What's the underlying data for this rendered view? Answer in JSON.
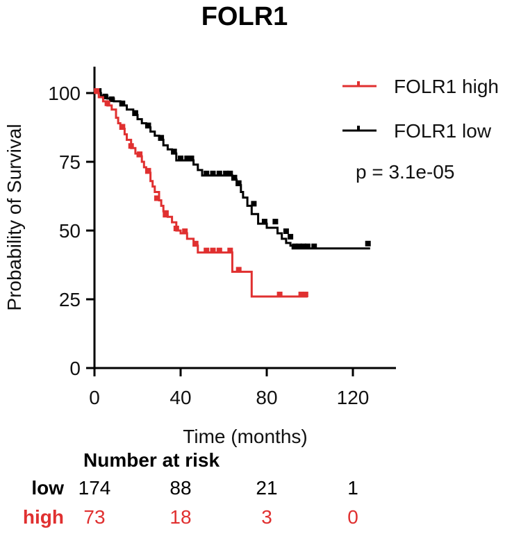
{
  "chart_data": {
    "type": "line",
    "subtype": "kaplan-meier",
    "title": "FOLR1",
    "xlabel": "Time (months)",
    "ylabel": "Probability of Survival",
    "xlim": [
      0,
      140
    ],
    "ylim": [
      0,
      110
    ],
    "xticks": [
      0,
      40,
      80,
      120
    ],
    "yticks": [
      0,
      25,
      50,
      75,
      100
    ],
    "xtick_labels": [
      "0",
      "40",
      "80",
      "120"
    ],
    "ytick_labels": [
      "0",
      "25",
      "50",
      "75",
      "100"
    ],
    "grid": false,
    "legend_position": "top-right",
    "annotation": "p = 3.1e-05",
    "colors": {
      "high": "#e03030",
      "low": "#000000"
    },
    "series": [
      {
        "name": "FOLR1 high",
        "key": "high",
        "color": "#e03030",
        "x": [
          0,
          2,
          4,
          6,
          8,
          10,
          11,
          12,
          14,
          15,
          17,
          19,
          20,
          22,
          23,
          24,
          26,
          27,
          28,
          30,
          31,
          32,
          34,
          36,
          38,
          40,
          43,
          46,
          48,
          64,
          73,
          99
        ],
        "y": [
          100,
          98.5,
          97,
          95.5,
          94,
          91,
          89,
          87,
          85,
          83,
          80,
          78,
          77,
          75,
          73,
          71,
          68,
          66,
          64,
          61,
          59,
          57,
          55,
          53,
          50,
          49,
          47,
          44.5,
          42,
          35,
          26,
          26
        ],
        "censor_x": [
          1,
          6,
          13,
          17,
          21,
          25,
          29,
          33,
          38,
          42,
          47,
          52,
          55,
          58,
          63,
          67,
          86,
          96,
          98
        ],
        "censor_y": [
          100,
          95.5,
          87,
          80,
          77,
          71,
          61,
          55,
          50,
          49,
          44.5,
          42,
          42,
          42,
          42,
          35,
          26,
          26,
          26
        ]
      },
      {
        "name": "FOLR1 low",
        "key": "low",
        "color": "#000000",
        "x": [
          0,
          3,
          6,
          9,
          12,
          15,
          18,
          20,
          22,
          24,
          26,
          28,
          30,
          32,
          34,
          36,
          38,
          46,
          48,
          50,
          64,
          66,
          68,
          69,
          71,
          73,
          76,
          80,
          85,
          87,
          89,
          91,
          92,
          128
        ],
        "y": [
          100,
          99,
          98,
          97,
          95.5,
          94,
          92,
          90.5,
          89,
          87.5,
          86,
          84.5,
          83,
          81,
          79.5,
          78,
          75.5,
          74,
          72,
          70,
          68.5,
          66.5,
          64,
          62,
          59,
          56,
          52.5,
          51,
          49,
          47,
          45.5,
          44.5,
          43.5,
          43.5
        ],
        "censor_x": [
          2,
          5,
          8,
          13,
          19,
          25,
          31,
          37,
          40,
          43,
          45,
          52,
          55,
          58,
          61,
          63,
          65,
          67,
          74,
          79,
          84,
          89,
          91,
          93,
          95,
          97,
          99,
          102,
          127
        ],
        "censor_y": [
          100,
          98,
          97,
          95.5,
          92,
          87.5,
          83,
          78,
          75.5,
          75.5,
          75.5,
          70,
          70,
          70,
          70,
          70,
          68.5,
          66.5,
          59,
          52.5,
          52.5,
          49,
          47,
          43.5,
          43.5,
          43.5,
          43.5,
          43.5,
          44.5
        ]
      }
    ],
    "legend": [
      {
        "label": "FOLR1 high",
        "color": "#e03030"
      },
      {
        "label": "FOLR1 low",
        "color": "#000000"
      }
    ],
    "risk_table": {
      "title": "Number at risk",
      "times": [
        0,
        40,
        80,
        120
      ],
      "rows": [
        {
          "group": "low",
          "color": "#000000",
          "values": [
            "174",
            "88",
            "21",
            "1"
          ]
        },
        {
          "group": "high",
          "color": "#e03030",
          "values": [
            "73",
            "18",
            "3",
            "0"
          ]
        }
      ]
    }
  }
}
